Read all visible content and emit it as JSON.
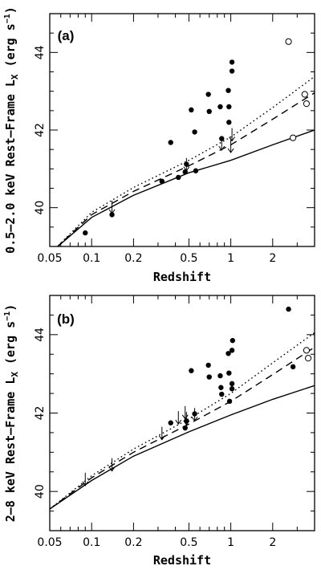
{
  "chart_data": [
    {
      "type": "scatter",
      "panel_label": "(a)",
      "xlabel": "Redshift",
      "ylabel": "0.5–2.0 keV Rest–Frame L",
      "ylabel_sub": "X",
      "ylabel_unit": "(erg s",
      "ylabel_exp": "−1",
      "ylabel_close": ")",
      "xscale": "log",
      "xlim": [
        0.05,
        4.0
      ],
      "ylim": [
        39,
        45
      ],
      "xticks": [
        0.05,
        0.1,
        0.2,
        0.5,
        1,
        2
      ],
      "xtick_labels": [
        "0.05",
        "0.1",
        "0.2",
        "0.5",
        "1",
        "2"
      ],
      "yticks": [
        40,
        42,
        44
      ],
      "ytick_labels": [
        "40",
        "42",
        "44"
      ],
      "series": [
        {
          "marker": "filled",
          "points": [
            [
              0.09,
              39.35
            ],
            [
              0.14,
              39.82
            ],
            [
              0.32,
              40.68
            ],
            [
              0.37,
              41.68
            ],
            [
              0.42,
              40.78
            ],
            [
              0.47,
              40.92
            ],
            [
              0.48,
              41.12
            ],
            [
              0.52,
              42.52
            ],
            [
              0.55,
              41.95
            ],
            [
              0.56,
              40.95
            ],
            [
              0.69,
              42.92
            ],
            [
              0.7,
              42.48
            ],
            [
              0.84,
              42.6
            ],
            [
              0.86,
              41.78
            ],
            [
              0.96,
              43.02
            ],
            [
              0.97,
              42.6
            ],
            [
              0.97,
              42.2
            ],
            [
              1.02,
              43.52
            ],
            [
              1.02,
              43.75
            ]
          ]
        },
        {
          "marker": "open",
          "points": [
            [
              2.6,
              44.28
            ],
            [
              2.8,
              41.8
            ],
            [
              3.4,
              42.92
            ],
            [
              3.5,
              42.68
            ]
          ]
        },
        {
          "marker": "upper-limit",
          "points": [
            [
              0.14,
              39.85
            ],
            [
              0.48,
              40.95
            ],
            [
              0.86,
              41.48
            ],
            [
              1.0,
              41.42
            ],
            [
              1.02,
              41.72
            ]
          ]
        }
      ],
      "model_curves": [
        {
          "style": "solid",
          "points": [
            [
              0.055,
              38.95
            ],
            [
              0.1,
              39.75
            ],
            [
              0.2,
              40.32
            ],
            [
              0.5,
              40.9
            ],
            [
              1.0,
              41.22
            ],
            [
              2.0,
              41.62
            ],
            [
              4.0,
              42.0
            ]
          ]
        },
        {
          "style": "dashed",
          "points": [
            [
              0.055,
              38.95
            ],
            [
              0.1,
              39.82
            ],
            [
              0.2,
              40.42
            ],
            [
              0.5,
              41.08
            ],
            [
              1.0,
              41.62
            ],
            [
              2.0,
              42.28
            ],
            [
              4.0,
              42.96
            ]
          ]
        },
        {
          "style": "dotted",
          "points": [
            [
              0.055,
              38.95
            ],
            [
              0.1,
              39.88
            ],
            [
              0.2,
              40.52
            ],
            [
              0.5,
              41.22
            ],
            [
              1.0,
              41.82
            ],
            [
              2.0,
              42.58
            ],
            [
              4.0,
              43.38
            ]
          ]
        }
      ]
    },
    {
      "type": "scatter",
      "panel_label": "(b)",
      "xlabel": "Redshift",
      "ylabel": "2–8 keV Rest–Frame L",
      "ylabel_sub": "X",
      "ylabel_unit": "(erg s",
      "ylabel_exp": "−1",
      "ylabel_close": ")",
      "xscale": "log",
      "xlim": [
        0.05,
        4.0
      ],
      "ylim": [
        39,
        45
      ],
      "xticks": [
        0.05,
        0.1,
        0.2,
        0.5,
        1,
        2
      ],
      "xtick_labels": [
        "0.05",
        "0.1",
        "0.2",
        "0.5",
        "1",
        "2"
      ],
      "yticks": [
        40,
        42,
        44
      ],
      "ytick_labels": [
        "40",
        "42",
        "44"
      ],
      "series": [
        {
          "marker": "filled",
          "points": [
            [
              0.37,
              41.75
            ],
            [
              0.47,
              41.62
            ],
            [
              0.48,
              41.8
            ],
            [
              0.52,
              43.08
            ],
            [
              0.55,
              41.98
            ],
            [
              0.69,
              43.22
            ],
            [
              0.7,
              42.92
            ],
            [
              0.84,
              42.95
            ],
            [
              0.85,
              42.65
            ],
            [
              0.86,
              42.48
            ],
            [
              0.96,
              43.52
            ],
            [
              0.97,
              43.02
            ],
            [
              0.98,
              42.3
            ],
            [
              1.02,
              42.62
            ],
            [
              1.02,
              42.75
            ],
            [
              1.02,
              43.6
            ],
            [
              1.03,
              43.85
            ],
            [
              2.6,
              44.65
            ],
            [
              2.8,
              43.18
            ]
          ]
        },
        {
          "marker": "open",
          "points": [
            [
              3.5,
              43.6
            ],
            [
              3.6,
              43.4
            ]
          ]
        },
        {
          "marker": "upper-limit",
          "points": [
            [
              0.09,
              40.15
            ],
            [
              0.14,
              40.52
            ],
            [
              0.32,
              41.32
            ],
            [
              0.42,
              41.72
            ],
            [
              0.47,
              41.85
            ],
            [
              0.48,
              41.7
            ],
            [
              0.55,
              41.8
            ]
          ]
        }
      ],
      "model_curves": [
        {
          "style": "solid",
          "points": [
            [
              0.05,
              39.55
            ],
            [
              0.1,
              40.28
            ],
            [
              0.2,
              40.9
            ],
            [
              0.5,
              41.52
            ],
            [
              1.0,
              41.95
            ],
            [
              2.0,
              42.35
            ],
            [
              4.0,
              42.7
            ]
          ]
        },
        {
          "style": "dashed",
          "points": [
            [
              0.05,
              39.55
            ],
            [
              0.1,
              40.35
            ],
            [
              0.2,
              41.0
            ],
            [
              0.5,
              41.72
            ],
            [
              1.0,
              42.3
            ],
            [
              2.0,
              42.98
            ],
            [
              4.0,
              43.68
            ]
          ]
        },
        {
          "style": "dotted",
          "points": [
            [
              0.05,
              39.55
            ],
            [
              0.1,
              40.4
            ],
            [
              0.2,
              41.08
            ],
            [
              0.5,
              41.85
            ],
            [
              1.0,
              42.5
            ],
            [
              2.0,
              43.28
            ],
            [
              4.0,
              44.05
            ]
          ]
        }
      ]
    }
  ]
}
